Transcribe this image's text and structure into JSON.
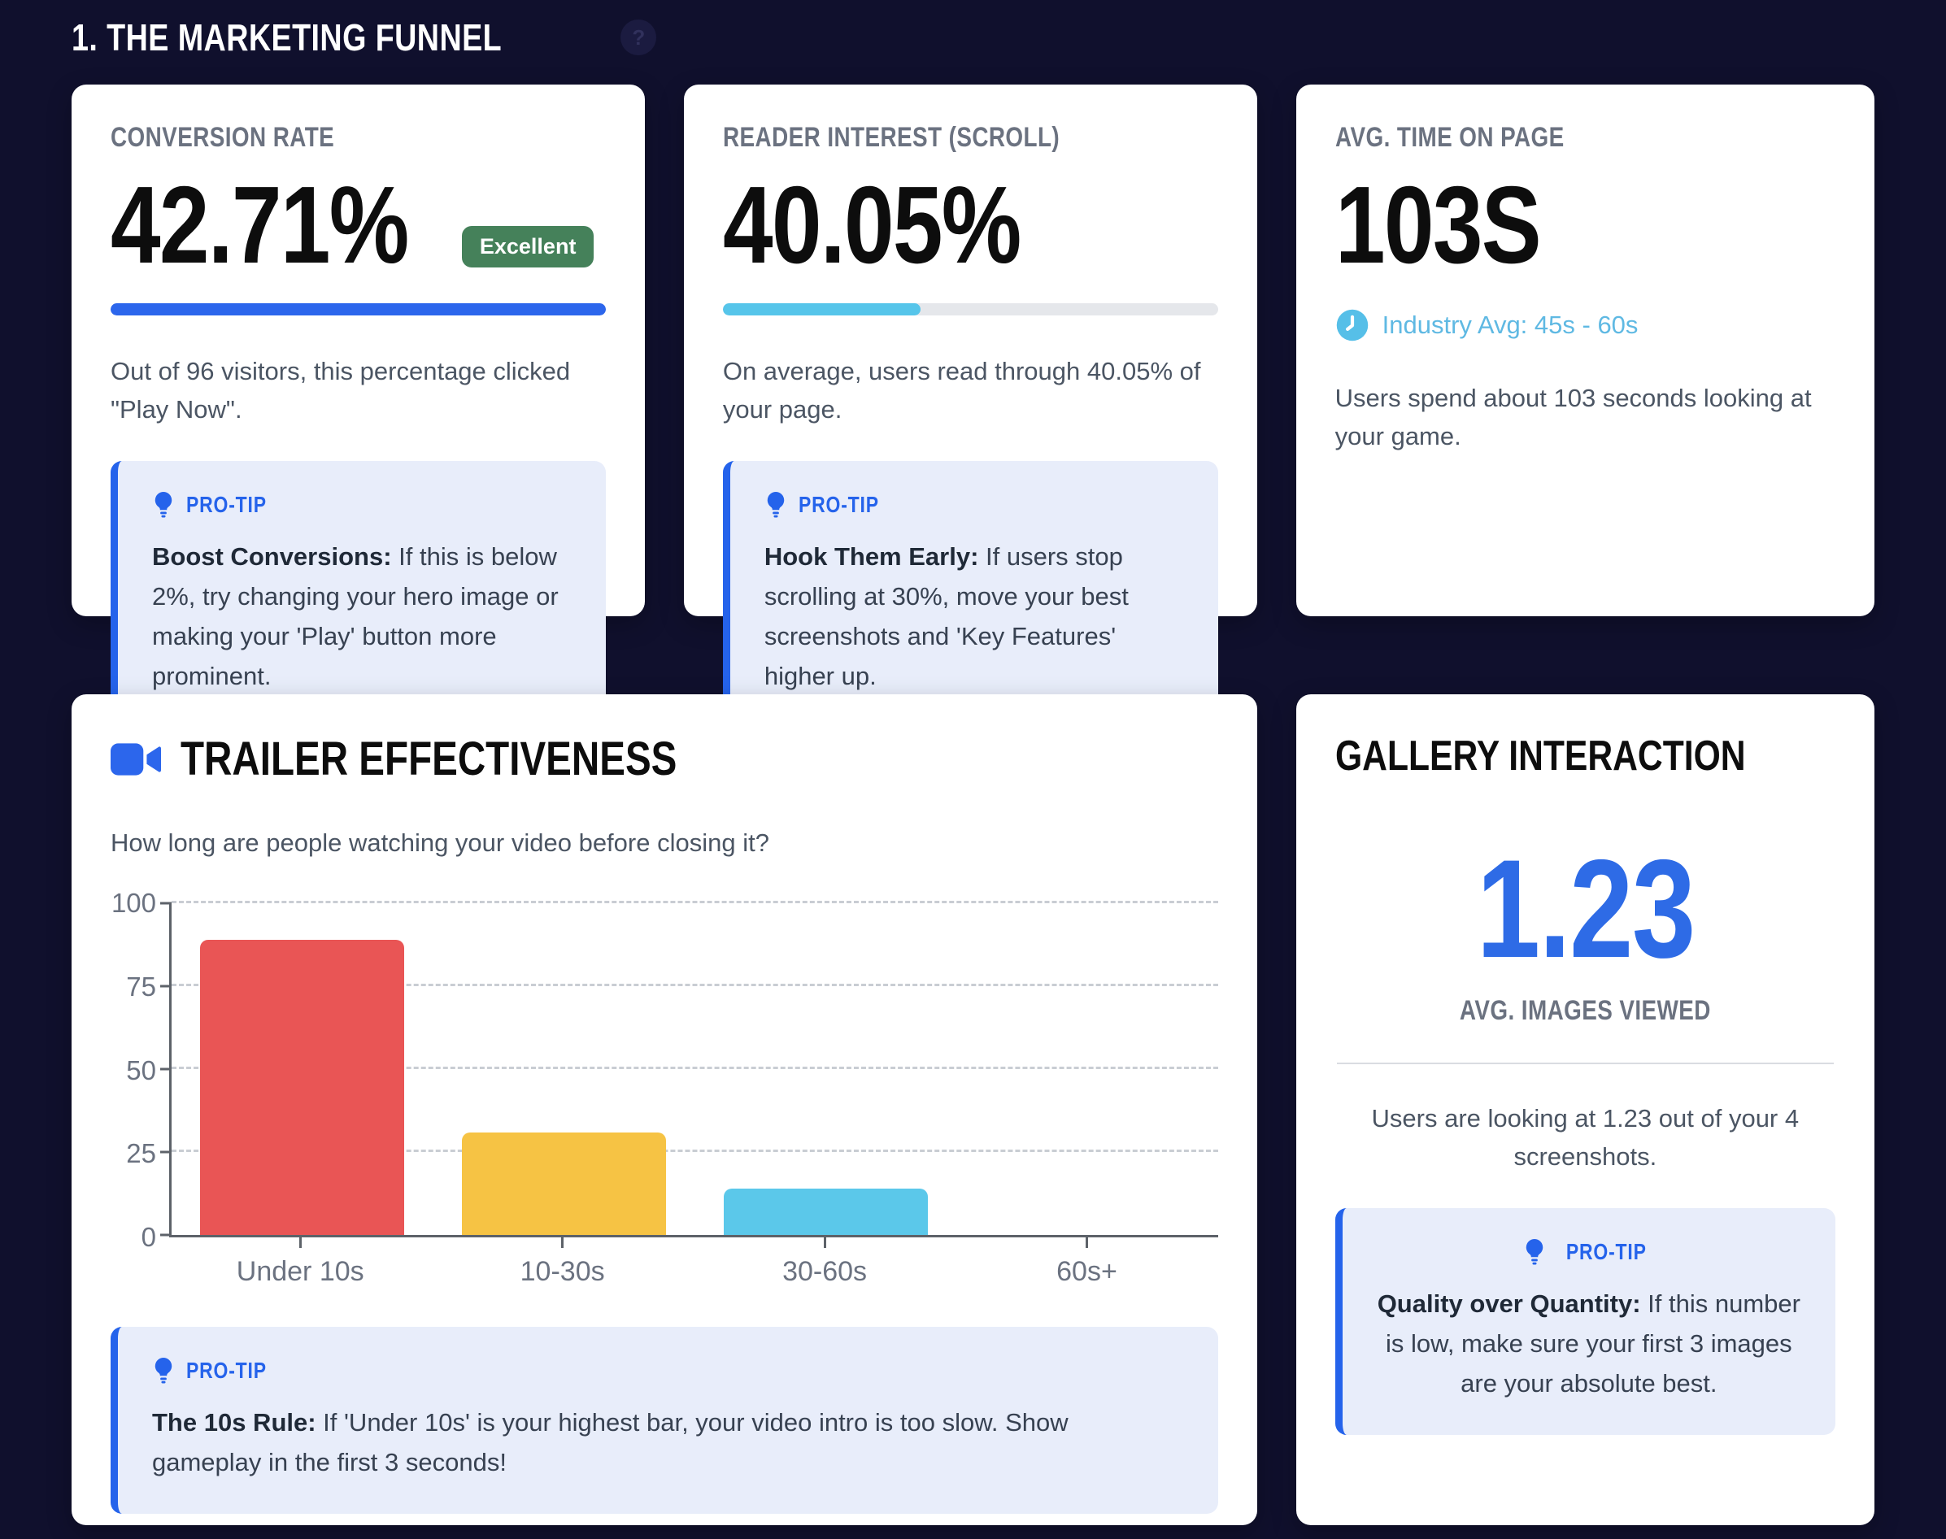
{
  "page": {
    "title": "1. THE MARKETING FUNNEL",
    "help_icon_glyph": "?"
  },
  "colors": {
    "background": "#10102d",
    "accent_blue": "#2563eb",
    "cyan": "#56c5ea",
    "badge_green": "#45815a",
    "protip_bg": "#e8edfa",
    "bar_red": "#e95555",
    "bar_yellow": "#f6c344",
    "bar_cyan": "#5bc8ea"
  },
  "cards": {
    "conversion": {
      "label": "CONVERSION RATE",
      "value": "42.71%",
      "badge": "Excellent",
      "progress_pct": 100,
      "progress_color": "#2c66ec",
      "description": "Out of 96 visitors, this percentage clicked \"Play Now\".",
      "protip_label": "PRO-TIP",
      "protip_bold": "Boost Conversions:",
      "protip_text": " If this is below 2%, try changing your hero image or making your 'Play' button more prominent."
    },
    "reader": {
      "label": "READER INTEREST (SCROLL)",
      "value": "40.05%",
      "progress_pct": 40,
      "progress_color": "#56c5ea",
      "description": "On average, users read through 40.05% of your page.",
      "protip_label": "PRO-TIP",
      "protip_bold": "Hook Them Early:",
      "protip_text": " If users stop scrolling at 30%, move your best screenshots and 'Key Features' higher up."
    },
    "time": {
      "label": "AVG. TIME ON PAGE",
      "value": "103S",
      "industry_avg": "Industry Avg: 45s - 60s",
      "description": "Users spend about 103 seconds looking at your game."
    },
    "trailer": {
      "title": "TRAILER EFFECTIVENESS",
      "subtitle": "How long are people watching your video before closing it?",
      "protip_label": "PRO-TIP",
      "protip_bold": "The 10s Rule:",
      "protip_text": " If 'Under 10s' is your highest bar, your video intro is too slow. Show gameplay in the first 3 seconds!"
    },
    "gallery": {
      "title": "GALLERY INTERACTION",
      "value": "1.23",
      "value_label": "AVG. IMAGES VIEWED",
      "description": "Users are looking at 1.23 out of your 4 screenshots.",
      "protip_label": "PRO-TIP",
      "protip_bold": "Quality over Quantity:",
      "protip_text": " If this number is low, make sure your first 3 images are your absolute best."
    }
  },
  "chart_data": {
    "type": "bar",
    "title": "TRAILER EFFECTIVENESS",
    "subtitle": "How long are people watching your video before closing it?",
    "categories": [
      "Under 10s",
      "10-30s",
      "30-60s",
      "60s+"
    ],
    "values": [
      89,
      31,
      14,
      0
    ],
    "bar_colors": [
      "#e95555",
      "#f6c344",
      "#5bc8ea",
      "#9ca3af"
    ],
    "xlabel": "",
    "ylabel": "",
    "ylim": [
      0,
      100
    ],
    "yticks": [
      0,
      25,
      50,
      75,
      100
    ],
    "grid": "horizontal-dashed",
    "legend": "none"
  }
}
